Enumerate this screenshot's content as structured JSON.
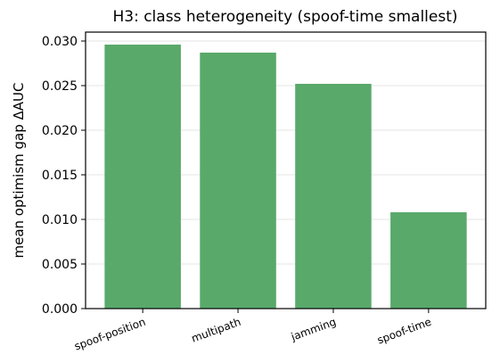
{
  "chart_data": {
    "type": "bar",
    "title": "H3: class heterogeneity (spoof-time smallest)",
    "ylabel": "mean optimism gap  ΔAUC",
    "categories": [
      "spoof-position",
      "multipath",
      "jamming",
      "spoof-time"
    ],
    "values": [
      0.0296,
      0.0287,
      0.0252,
      0.0108
    ],
    "color": "#59a96a",
    "ylim": [
      0,
      0.031
    ],
    "yticks": [
      {
        "value": 0,
        "label": "0.000"
      },
      {
        "value": 0.005,
        "label": "0.005"
      },
      {
        "value": 0.01,
        "label": "0.010"
      },
      {
        "value": 0.015,
        "label": "0.015"
      },
      {
        "value": 0.02,
        "label": "0.020"
      },
      {
        "value": 0.025,
        "label": "0.025"
      },
      {
        "value": 0.03,
        "label": "0.030"
      }
    ],
    "grid": true
  }
}
